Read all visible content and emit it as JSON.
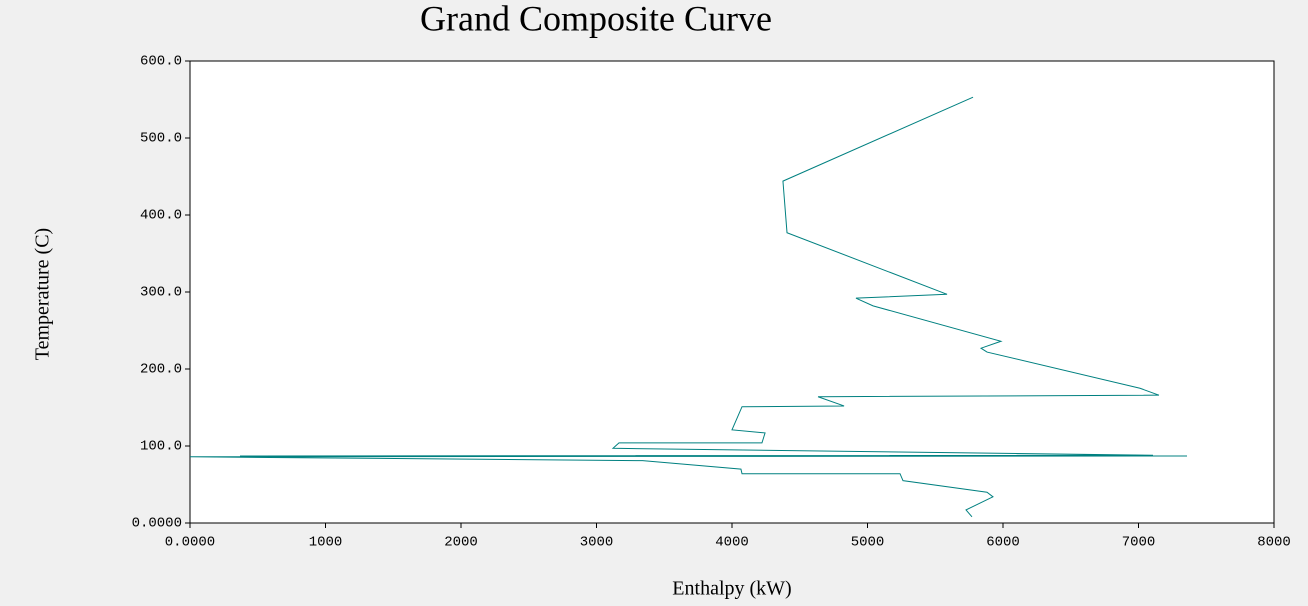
{
  "chart_data": {
    "type": "line",
    "title": "Grand Composite Curve",
    "x_label": "Enthalpy (kW)",
    "y_label": "Temperature (C)",
    "series": [
      {
        "color": "#008080",
        "x": [
          5779,
          4376,
          4406,
          5587,
          4915,
          5041,
          5985,
          5838,
          5882,
          7011,
          7151,
          4635,
          4827,
          4074,
          4000,
          4244,
          4221,
          3166,
          3122,
          7107,
          369,
          7358,
          0,
          3340,
          4066,
          4074,
          5240,
          5262,
          5882,
          5926,
          5727,
          5771
        ],
        "values": [
          553,
          444,
          377,
          297,
          292,
          282,
          236,
          227,
          222,
          175,
          166,
          164,
          152,
          151,
          121,
          117,
          104,
          104,
          97,
          88,
          87,
          87,
          86,
          81,
          70,
          64,
          64,
          55,
          40,
          34,
          17,
          8
        ]
      }
    ],
    "xlim": [
      0,
      8000
    ],
    "xticks": [
      {
        "value": 0,
        "label": "0.0000"
      },
      1000,
      2000,
      3000,
      4000,
      5000,
      6000,
      7000,
      8000
    ],
    "ylim": [
      0,
      600
    ],
    "yticks": [
      {
        "value": 0,
        "label": "0.0000"
      },
      {
        "value": 100,
        "label": "100.0"
      },
      {
        "value": 200,
        "label": "200.0"
      },
      {
        "value": 300,
        "label": "300.0"
      },
      {
        "value": 400,
        "label": "400.0"
      },
      {
        "value": 500,
        "label": "500.0"
      },
      {
        "value": 600,
        "label": "600.0"
      }
    ]
  }
}
